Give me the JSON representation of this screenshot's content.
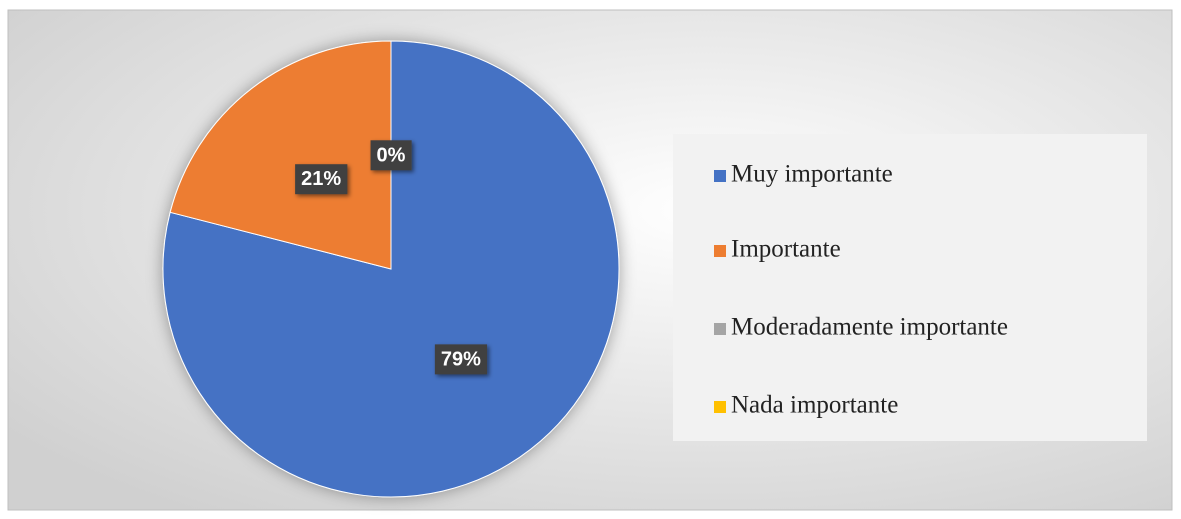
{
  "chart_data": {
    "type": "pie",
    "categories": [
      "Muy importante",
      "Importante",
      "Moderadamente importante",
      "Nada importante"
    ],
    "values": [
      79,
      21,
      0,
      0
    ],
    "value_labels": [
      "79%",
      "21%",
      "0%",
      null
    ],
    "colors": [
      "#4472c4",
      "#ed7d31",
      "#a5a5a5",
      "#ffc000"
    ],
    "legend": "right"
  }
}
